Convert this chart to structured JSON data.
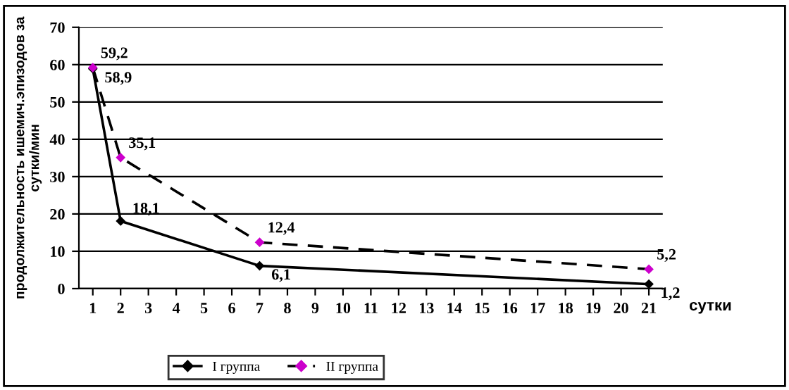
{
  "chart_data": {
    "type": "line",
    "ylabel": "продолжительность ишемич.эпизодов за сутки/мин",
    "xlabel": "сутки",
    "categories": [
      "1",
      "2",
      "3",
      "4",
      "5",
      "6",
      "7",
      "8",
      "9",
      "10",
      "11",
      "12",
      "13",
      "14",
      "15",
      "16",
      "17",
      "18",
      "19",
      "20",
      "21"
    ],
    "series": [
      {
        "name": "I группа",
        "color": "#000000",
        "line_style": "solid",
        "values": [
          58.9,
          18.1,
          null,
          null,
          null,
          null,
          6.1,
          null,
          null,
          null,
          null,
          null,
          null,
          null,
          null,
          null,
          null,
          null,
          null,
          null,
          1.2
        ],
        "value_labels": [
          "58,9",
          "18,1",
          null,
          null,
          null,
          null,
          "6,1",
          null,
          null,
          null,
          null,
          null,
          null,
          null,
          null,
          null,
          null,
          null,
          null,
          null,
          "1,2"
        ]
      },
      {
        "name": "II группа",
        "color": "#cc00cc",
        "line_style": "dashed",
        "values": [
          59.2,
          35.1,
          null,
          null,
          null,
          null,
          12.4,
          null,
          null,
          null,
          null,
          null,
          null,
          null,
          null,
          null,
          null,
          null,
          null,
          null,
          5.2
        ],
        "value_labels": [
          "59,2",
          "35,1",
          null,
          null,
          null,
          null,
          "12,4",
          null,
          null,
          null,
          null,
          null,
          null,
          null,
          null,
          null,
          null,
          null,
          null,
          null,
          "5,2"
        ]
      }
    ],
    "ylim": [
      0,
      70
    ],
    "yticks": [
      0,
      10,
      20,
      30,
      40,
      50,
      60,
      70
    ],
    "grid": "y",
    "marker": "diamond",
    "legend": "bottom"
  }
}
